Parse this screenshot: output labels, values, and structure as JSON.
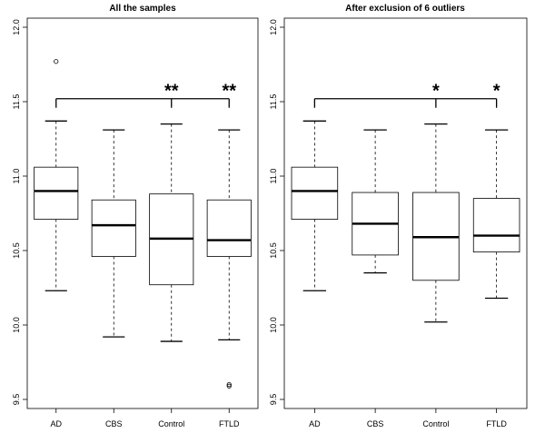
{
  "chart_data": [
    {
      "type": "box",
      "title": "All the samples",
      "categories": [
        "AD",
        "CBS",
        "Control",
        "FTLD"
      ],
      "ylim": [
        9.5,
        12.0
      ],
      "yticks": [
        "9.5",
        "10.0",
        "10.5",
        "11.0",
        "11.5",
        "12.0"
      ],
      "boxes": [
        {
          "name": "AD",
          "min": 10.23,
          "q1": 10.71,
          "median": 10.9,
          "q3": 11.06,
          "max": 11.37,
          "outliers": [
            11.77
          ]
        },
        {
          "name": "CBS",
          "min": 9.92,
          "q1": 10.46,
          "median": 10.67,
          "q3": 10.84,
          "max": 11.31,
          "outliers": []
        },
        {
          "name": "Control",
          "min": 9.89,
          "q1": 10.27,
          "median": 10.58,
          "q3": 10.88,
          "max": 11.35,
          "outliers": []
        },
        {
          "name": "FTLD",
          "min": 9.9,
          "q1": 10.46,
          "median": 10.57,
          "q3": 10.84,
          "max": 11.31,
          "outliers": [
            9.59,
            9.6
          ]
        }
      ],
      "significance": {
        "y": 11.52,
        "from": "AD",
        "marks": [
          {
            "to": "Control",
            "label": "**"
          },
          {
            "to": "FTLD",
            "label": "**"
          }
        ]
      }
    },
    {
      "type": "box",
      "title": "After exclusion of 6 outliers",
      "categories": [
        "AD",
        "CBS",
        "Control",
        "FTLD"
      ],
      "ylim": [
        9.5,
        12.0
      ],
      "yticks": [
        "9.5",
        "10.0",
        "10.5",
        "11.0",
        "11.5",
        "12.0"
      ],
      "boxes": [
        {
          "name": "AD",
          "min": 10.23,
          "q1": 10.71,
          "median": 10.9,
          "q3": 11.06,
          "max": 11.37,
          "outliers": []
        },
        {
          "name": "CBS",
          "min": 10.35,
          "q1": 10.47,
          "median": 10.68,
          "q3": 10.89,
          "max": 11.31,
          "outliers": []
        },
        {
          "name": "Control",
          "min": 10.02,
          "q1": 10.3,
          "median": 10.59,
          "q3": 10.89,
          "max": 11.35,
          "outliers": []
        },
        {
          "name": "FTLD",
          "min": 10.18,
          "q1": 10.49,
          "median": 10.6,
          "q3": 10.85,
          "max": 11.31,
          "outliers": []
        }
      ],
      "significance": {
        "y": 11.52,
        "from": "AD",
        "marks": [
          {
            "to": "Control",
            "label": "*"
          },
          {
            "to": "FTLD",
            "label": "*"
          }
        ]
      }
    }
  ]
}
